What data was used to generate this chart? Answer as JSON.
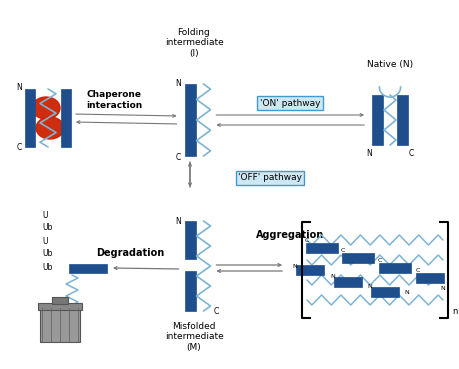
{
  "figure_width": 4.59,
  "figure_height": 3.69,
  "dpi": 100,
  "bg_color": "#ffffff",
  "dark_blue": "#1f4e8c",
  "light_blue": "#7fb3d3",
  "red": "#cc2200",
  "gray": "#777777",
  "box_bg": "#cce8f4",
  "box_edge": "#4499cc",
  "texts": {
    "folding_intermediate": "Folding\nintermediate\n(I)",
    "native": "Native (N)",
    "chaperone": "Chaperone\ninteraction",
    "on_pathway": "'ON' pathway",
    "off_pathway": "'OFF' pathway",
    "aggregation": "Aggregation",
    "degradation": "Degradation",
    "misfolded": "Misfolded\nintermediate\n(M)",
    "ub_labels": [
      "U",
      "Ub",
      "U",
      "Ub",
      "Ub"
    ],
    "n_sub": "n"
  }
}
